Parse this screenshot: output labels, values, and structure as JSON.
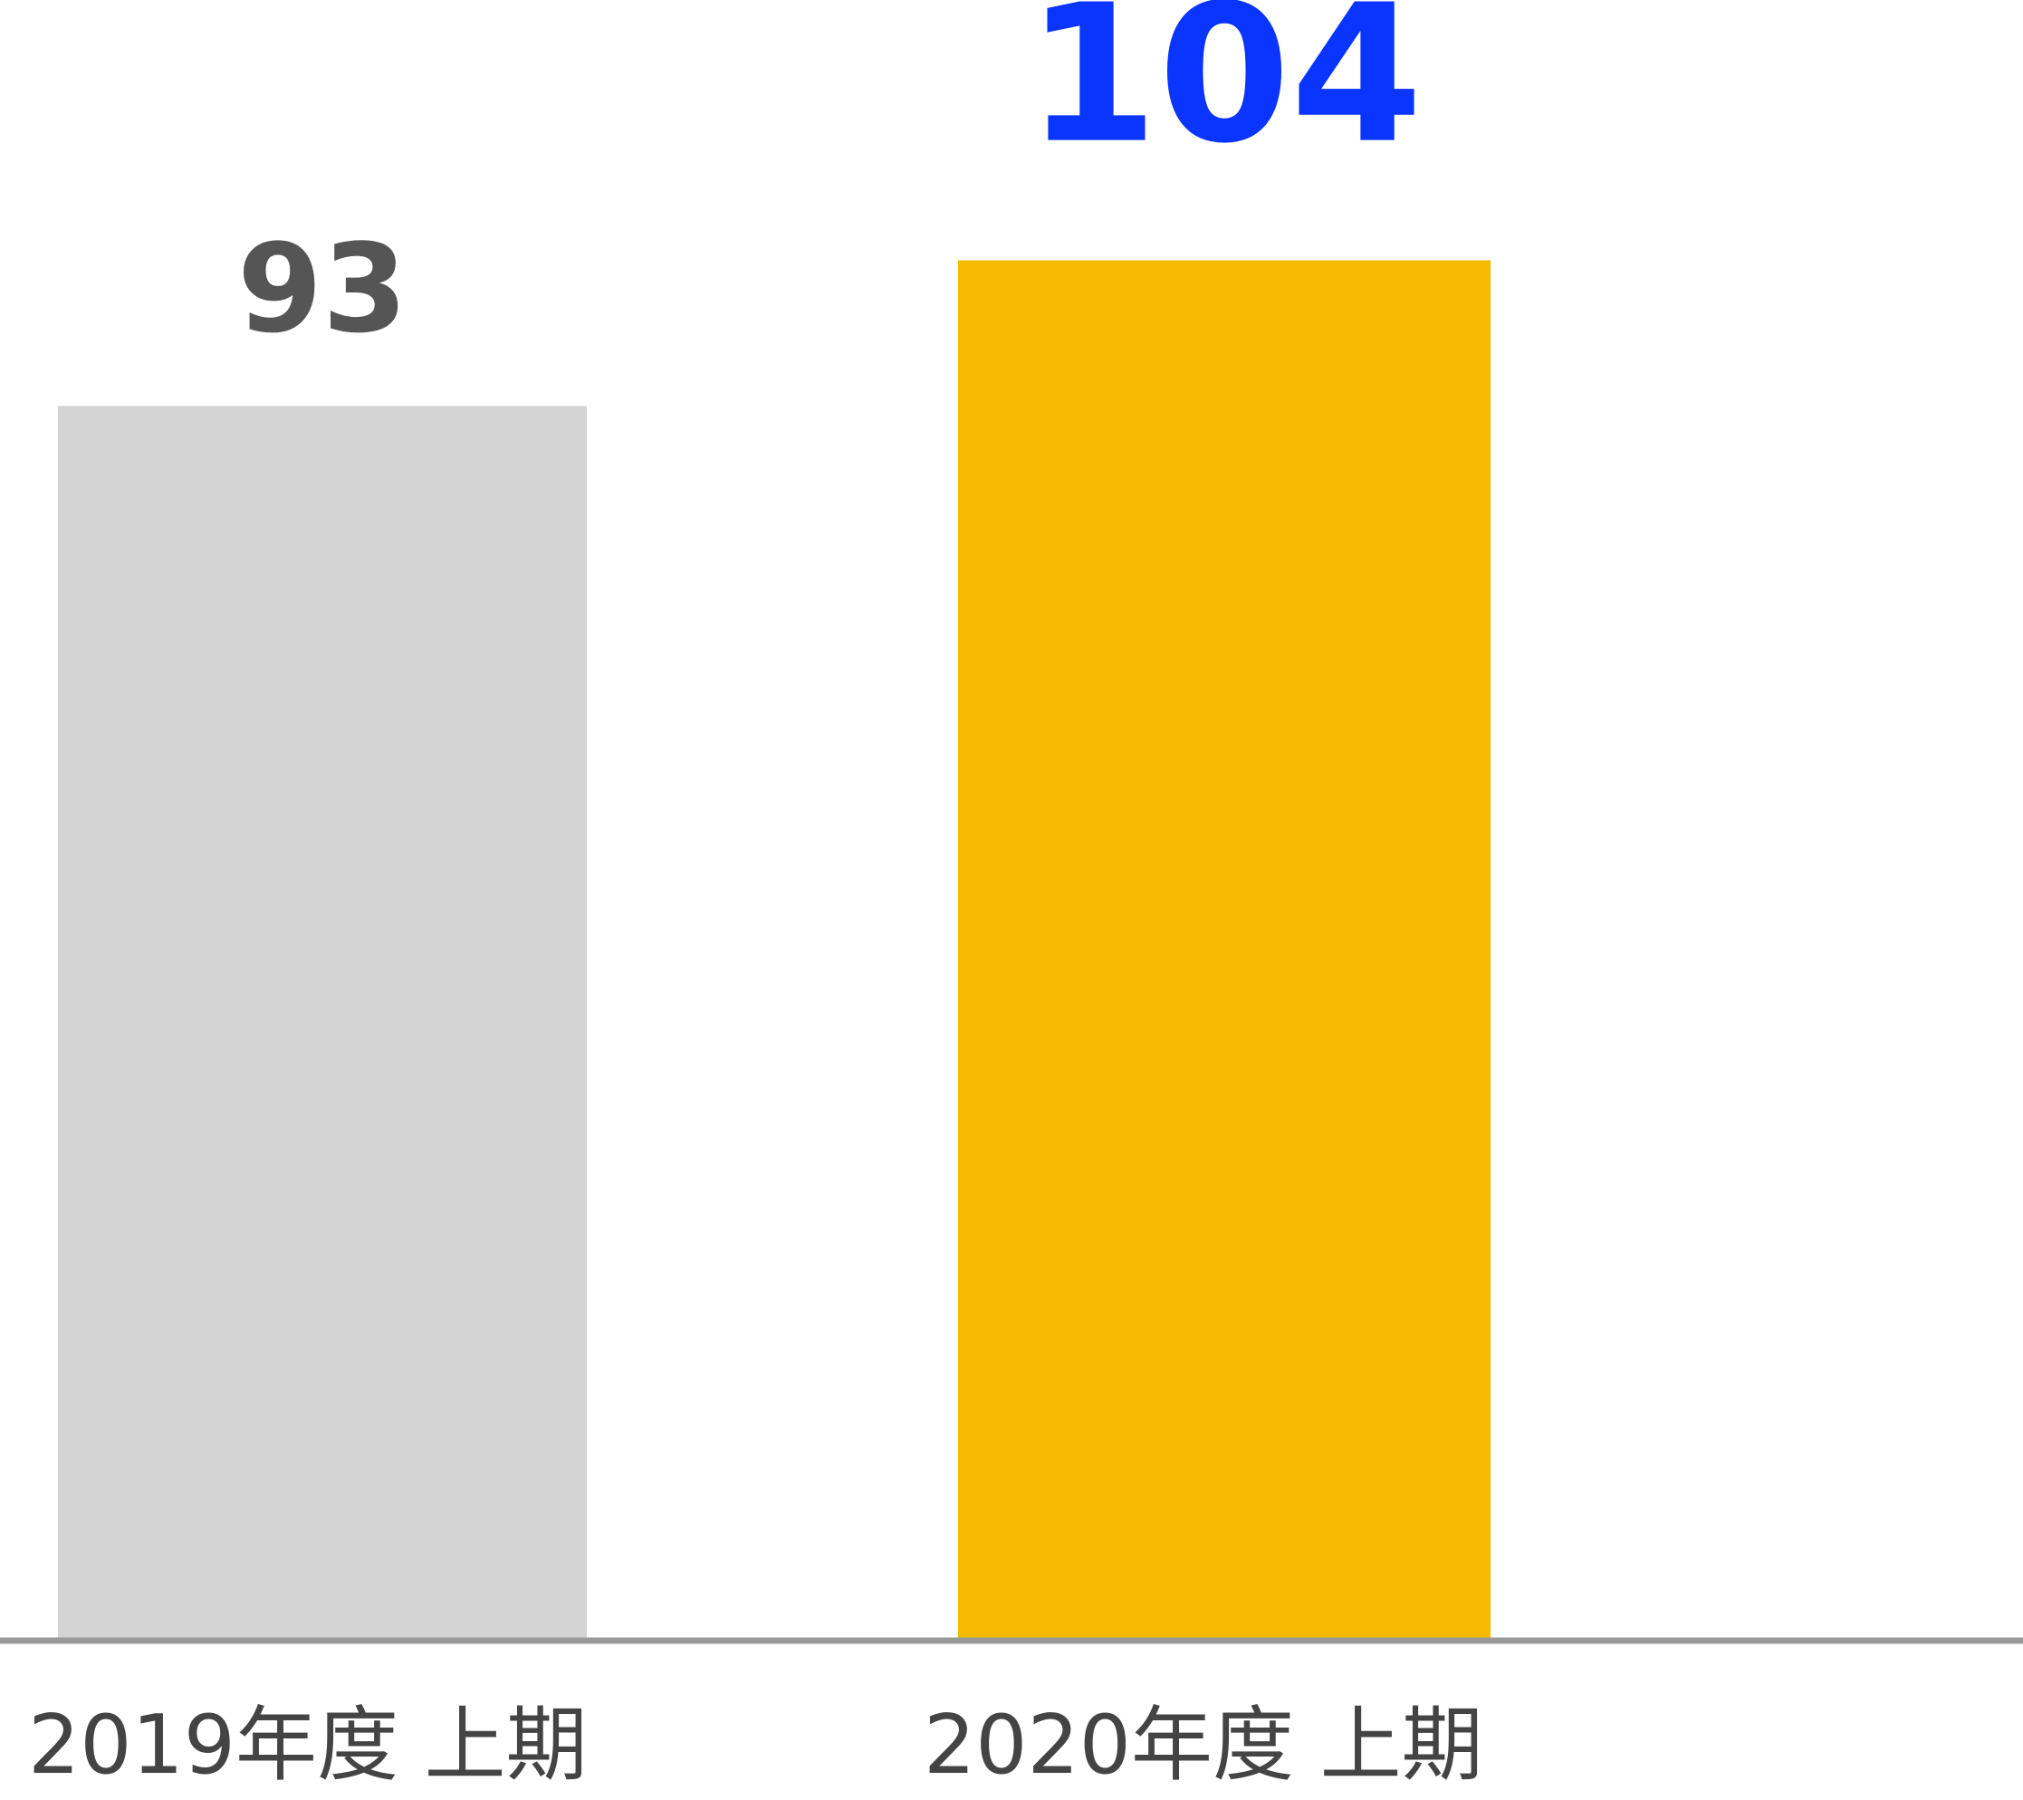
{
  "chart_data": {
    "type": "bar",
    "categories": [
      "2019年度 上期",
      "2020年度 上期"
    ],
    "values": [
      93,
      104
    ],
    "colors": [
      "#d4d4d4",
      "#f6bb00"
    ],
    "label_colors": [
      "#555555",
      "#0a34ff"
    ]
  }
}
